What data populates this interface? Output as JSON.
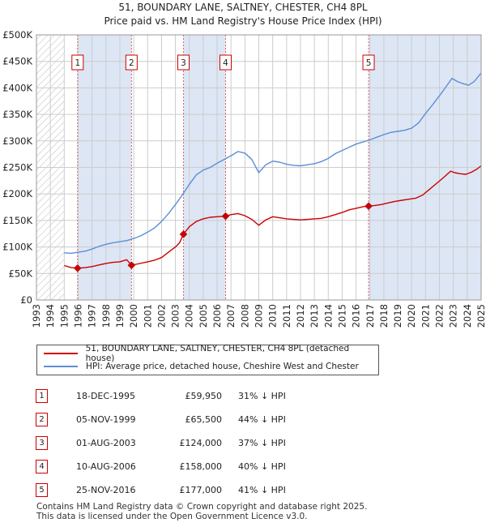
{
  "title": {
    "line1": "51, BOUNDARY LANE, SALTNEY, CHESTER, CH4 8PL",
    "line2": "Price paid vs. HM Land Registry's House Price Index (HPI)"
  },
  "colors": {
    "property": "#cc0000",
    "hpi": "#5b8fd6",
    "shade": "#dde6f5",
    "grid": "#cccccc",
    "marker_line": "#e06060"
  },
  "chart_data": {
    "type": "line",
    "title": "Price paid vs. HM Land Registry's House Price Index (HPI)",
    "xlabel": "",
    "ylabel": "",
    "xlim": [
      1993,
      2025
    ],
    "ylim": [
      0,
      500000
    ],
    "y_ticks": [
      0,
      50000,
      100000,
      150000,
      200000,
      250000,
      300000,
      350000,
      400000,
      450000,
      500000
    ],
    "y_tick_labels": [
      "£0",
      "£50K",
      "£100K",
      "£150K",
      "£200K",
      "£250K",
      "£300K",
      "£350K",
      "£400K",
      "£450K",
      "£500K"
    ],
    "x_ticks": [
      1993,
      1994,
      1995,
      1996,
      1997,
      1998,
      1999,
      2000,
      2001,
      2002,
      2003,
      2004,
      2005,
      2006,
      2007,
      2008,
      2009,
      2010,
      2011,
      2012,
      2013,
      2014,
      2015,
      2016,
      2017,
      2018,
      2019,
      2020,
      2021,
      2022,
      2023,
      2024,
      2025
    ],
    "hatched_range": [
      1993,
      1995.0
    ],
    "series": [
      {
        "name": "51, BOUNDARY LANE, SALTNEY, CHESTER, CH4 8PL (detached house)",
        "color": "#cc0000",
        "points": [
          [
            1995.0,
            65000
          ],
          [
            1995.5,
            61000
          ],
          [
            1995.96,
            59950
          ],
          [
            1996.5,
            61000
          ],
          [
            1997,
            63000
          ],
          [
            1997.5,
            66000
          ],
          [
            1998,
            69000
          ],
          [
            1998.5,
            71000
          ],
          [
            1999,
            72000
          ],
          [
            1999.5,
            76000
          ],
          [
            1999.84,
            65500
          ],
          [
            2000.3,
            68000
          ],
          [
            2001,
            72000
          ],
          [
            2001.5,
            75000
          ],
          [
            2002,
            80000
          ],
          [
            2002.5,
            90000
          ],
          [
            2003,
            100000
          ],
          [
            2003.3,
            108000
          ],
          [
            2003.58,
            124000
          ],
          [
            2004,
            138000
          ],
          [
            2004.5,
            148000
          ],
          [
            2005,
            153000
          ],
          [
            2005.5,
            156000
          ],
          [
            2006,
            157000
          ],
          [
            2006.61,
            158000
          ],
          [
            2007,
            161000
          ],
          [
            2007.5,
            163000
          ],
          [
            2008,
            159000
          ],
          [
            2008.5,
            152000
          ],
          [
            2009,
            141000
          ],
          [
            2009.5,
            151000
          ],
          [
            2010,
            157000
          ],
          [
            2010.5,
            155000
          ],
          [
            2011,
            153000
          ],
          [
            2011.5,
            152000
          ],
          [
            2012,
            151000
          ],
          [
            2012.5,
            152000
          ],
          [
            2013,
            153000
          ],
          [
            2013.5,
            154000
          ],
          [
            2014,
            157000
          ],
          [
            2014.5,
            161000
          ],
          [
            2015,
            165000
          ],
          [
            2015.5,
            170000
          ],
          [
            2016,
            173000
          ],
          [
            2016.5,
            176000
          ],
          [
            2016.9,
            177000
          ],
          [
            2017.3,
            178000
          ],
          [
            2017.8,
            180000
          ],
          [
            2018.3,
            183000
          ],
          [
            2018.8,
            186000
          ],
          [
            2019.3,
            188000
          ],
          [
            2019.8,
            190000
          ],
          [
            2020.3,
            192000
          ],
          [
            2020.8,
            198000
          ],
          [
            2021.3,
            209000
          ],
          [
            2021.8,
            220000
          ],
          [
            2022.3,
            231000
          ],
          [
            2022.8,
            243000
          ],
          [
            2023.1,
            240000
          ],
          [
            2023.5,
            238000
          ],
          [
            2023.9,
            237000
          ],
          [
            2024.3,
            241000
          ],
          [
            2024.7,
            247000
          ],
          [
            2025.0,
            253000
          ]
        ]
      },
      {
        "name": "HPI: Average price, detached house, Cheshire West and Chester",
        "color": "#5b8fd6",
        "points": [
          [
            1995.0,
            89000
          ],
          [
            1995.5,
            88000
          ],
          [
            1996,
            90000
          ],
          [
            1996.5,
            92000
          ],
          [
            1997,
            96000
          ],
          [
            1997.5,
            101000
          ],
          [
            1998,
            105000
          ],
          [
            1998.5,
            108000
          ],
          [
            1999,
            110000
          ],
          [
            1999.5,
            112000
          ],
          [
            2000,
            116000
          ],
          [
            2000.5,
            121000
          ],
          [
            2001,
            128000
          ],
          [
            2001.5,
            136000
          ],
          [
            2002,
            148000
          ],
          [
            2002.5,
            163000
          ],
          [
            2003,
            180000
          ],
          [
            2003.5,
            198000
          ],
          [
            2004,
            218000
          ],
          [
            2004.5,
            236000
          ],
          [
            2005,
            245000
          ],
          [
            2005.5,
            250000
          ],
          [
            2006,
            258000
          ],
          [
            2006.5,
            265000
          ],
          [
            2007,
            272000
          ],
          [
            2007.5,
            280000
          ],
          [
            2008,
            277000
          ],
          [
            2008.5,
            265000
          ],
          [
            2009,
            240000
          ],
          [
            2009.5,
            255000
          ],
          [
            2010,
            262000
          ],
          [
            2010.5,
            260000
          ],
          [
            2011,
            256000
          ],
          [
            2011.5,
            254000
          ],
          [
            2012,
            253000
          ],
          [
            2012.5,
            255000
          ],
          [
            2013,
            257000
          ],
          [
            2013.5,
            261000
          ],
          [
            2014,
            267000
          ],
          [
            2014.5,
            276000
          ],
          [
            2015,
            282000
          ],
          [
            2015.5,
            288000
          ],
          [
            2016,
            294000
          ],
          [
            2016.5,
            298000
          ],
          [
            2017,
            302000
          ],
          [
            2017.5,
            307000
          ],
          [
            2018,
            312000
          ],
          [
            2018.5,
            316000
          ],
          [
            2019,
            318000
          ],
          [
            2019.5,
            320000
          ],
          [
            2020,
            324000
          ],
          [
            2020.5,
            334000
          ],
          [
            2021,
            352000
          ],
          [
            2021.5,
            368000
          ],
          [
            2022,
            385000
          ],
          [
            2022.5,
            403000
          ],
          [
            2022.9,
            418000
          ],
          [
            2023.3,
            412000
          ],
          [
            2023.7,
            408000
          ],
          [
            2024.1,
            405000
          ],
          [
            2024.5,
            412000
          ],
          [
            2025.0,
            428000
          ]
        ]
      }
    ],
    "sales": [
      {
        "n": "1",
        "x": 1995.96,
        "price": 59950
      },
      {
        "n": "2",
        "x": 1999.84,
        "price": 65500
      },
      {
        "n": "3",
        "x": 2003.58,
        "price": 124000
      },
      {
        "n": "4",
        "x": 2006.61,
        "price": 158000
      },
      {
        "n": "5",
        "x": 2016.9,
        "price": 177000
      }
    ]
  },
  "legend": {
    "property_label": "51, BOUNDARY LANE, SALTNEY, CHESTER, CH4 8PL (detached house)",
    "hpi_label": "HPI: Average price, detached house, Cheshire West and Chester"
  },
  "sales_table": [
    {
      "n": "1",
      "date": "18-DEC-1995",
      "price": "£59,950",
      "hpi": "31% ↓ HPI"
    },
    {
      "n": "2",
      "date": "05-NOV-1999",
      "price": "£65,500",
      "hpi": "44% ↓ HPI"
    },
    {
      "n": "3",
      "date": "01-AUG-2003",
      "price": "£124,000",
      "hpi": "37% ↓ HPI"
    },
    {
      "n": "4",
      "date": "10-AUG-2006",
      "price": "£158,000",
      "hpi": "40% ↓ HPI"
    },
    {
      "n": "5",
      "date": "25-NOV-2016",
      "price": "£177,000",
      "hpi": "41% ↓ HPI"
    }
  ],
  "footer": {
    "line1": "Contains HM Land Registry data © Crown copyright and database right 2025.",
    "line2": "This data is licensed under the Open Government Licence v3.0."
  }
}
